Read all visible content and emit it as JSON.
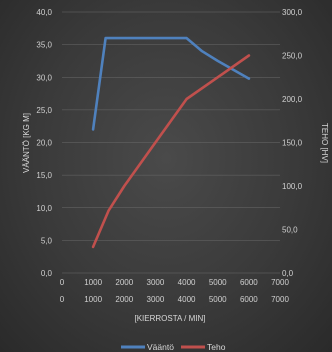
{
  "chart_data": {
    "type": "line",
    "xlabel": "[KIERROSTA / MIN]",
    "ylabel": "VÄÄNTÖ [KG M]",
    "y2label": "TEHO [HV]",
    "xlim": [
      0,
      7000
    ],
    "ylim": [
      0,
      40
    ],
    "y2lim": [
      0,
      300
    ],
    "x_ticks": [
      "0",
      "1000",
      "2000",
      "3000",
      "4000",
      "5000",
      "6000",
      "7000"
    ],
    "x_ticks_upper": [
      "0",
      "1000",
      "2000",
      "3000",
      "4000",
      "5000",
      "6000",
      "7000"
    ],
    "y_ticks": [
      "0,0",
      "5,0",
      "10,0",
      "15,0",
      "20,0",
      "25,0",
      "30,0",
      "35,0",
      "40,0"
    ],
    "y2_ticks": [
      "0,0",
      "50,0",
      "100,0",
      "150,0",
      "200,0",
      "250,0",
      "300,0"
    ],
    "grid": true,
    "legend_position": "bottom",
    "series": [
      {
        "name": "Vääntö",
        "axis": "left",
        "color": "#4f81bd",
        "x": [
          1000,
          1400,
          2000,
          3000,
          4000,
          4500,
          5000,
          6000
        ],
        "values": [
          22,
          36,
          36,
          36,
          36,
          34,
          32.5,
          29.8
        ]
      },
      {
        "name": "Teho",
        "axis": "right",
        "color": "#c0504d",
        "x": [
          1000,
          1500,
          2000,
          3000,
          4000,
          5000,
          6000
        ],
        "values": [
          30,
          72,
          100,
          150,
          200,
          225,
          250
        ]
      }
    ]
  }
}
